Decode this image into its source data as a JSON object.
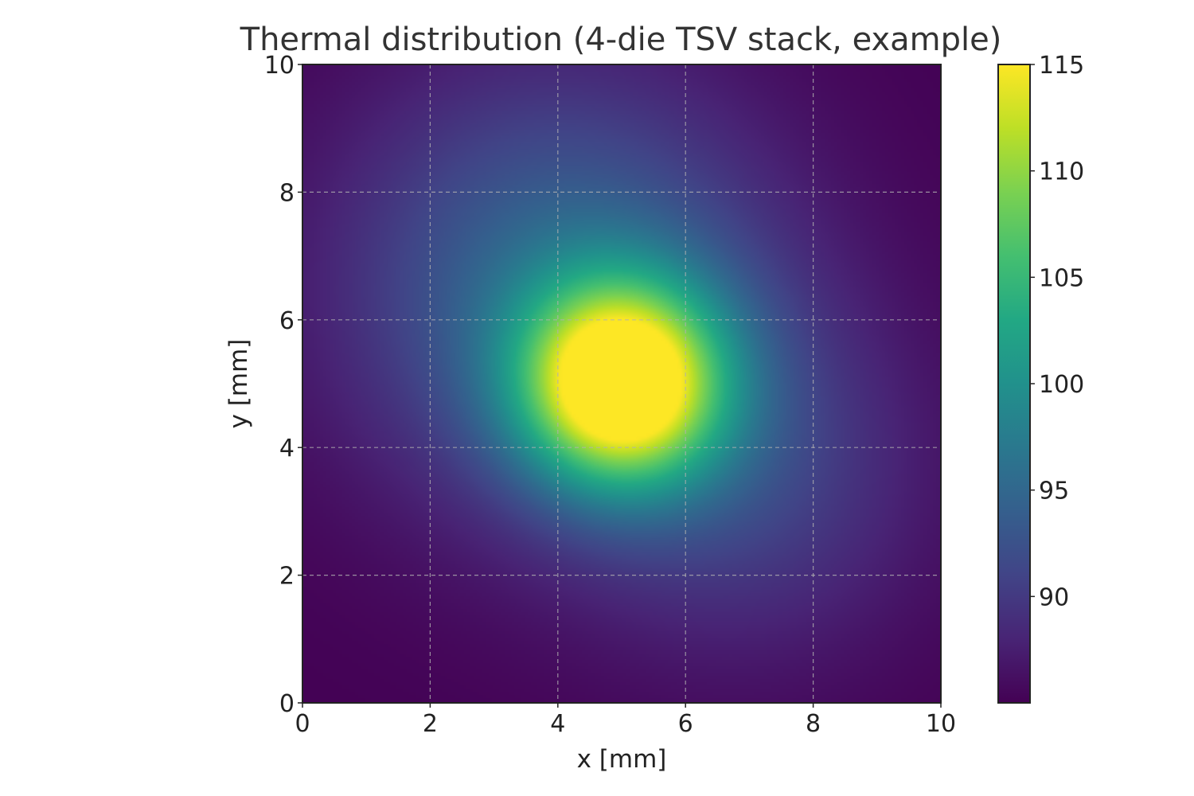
{
  "chart_data": {
    "type": "heatmap",
    "title": "Thermal distribution (4-die TSV stack, example)",
    "xlabel": "x [mm]",
    "ylabel": "y [mm]",
    "xlim": [
      0,
      10
    ],
    "ylim": [
      0,
      10
    ],
    "x_ticks": [
      "0",
      "2",
      "4",
      "6",
      "8",
      "10"
    ],
    "y_ticks": [
      "0",
      "2",
      "4",
      "6",
      "8",
      "10"
    ],
    "grid": true,
    "colormap": "viridis",
    "colorbar": {
      "min": 85,
      "max": 115,
      "ticks": [
        "90",
        "95",
        "100",
        "105",
        "110",
        "115"
      ]
    },
    "field": {
      "base": 85,
      "components": [
        {
          "kind": "hotspot",
          "x": 5.0,
          "y": 5.0,
          "amplitude": 30,
          "sigma": 1.1
        },
        {
          "kind": "warm-region",
          "x": 4.0,
          "y": 6.5,
          "amplitude": 10,
          "sigma": 2.4
        },
        {
          "kind": "warm-region",
          "x": 7.0,
          "y": 3.5,
          "amplitude": 5,
          "sigma": 2.0
        }
      ]
    }
  }
}
